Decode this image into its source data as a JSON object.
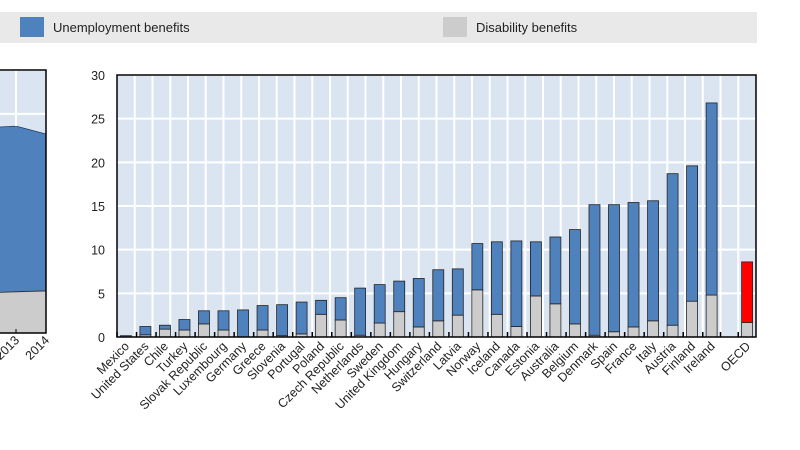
{
  "legend": {
    "items": [
      {
        "label": "Unemployment benefits",
        "color": "#4f81bd"
      },
      {
        "label": "Disability benefits",
        "color": "#cccccc"
      }
    ]
  },
  "chart_data": [
    {
      "type": "area",
      "stacked": true,
      "partial": "cropped at left edge",
      "x": [
        "2013",
        "2014"
      ],
      "series": [
        {
          "name": "Disability benefits",
          "color": "#cccccc",
          "values": [
            4.7,
            4.8
          ]
        },
        {
          "name": "Unemployment benefits",
          "color": "#4f81bd",
          "values": [
            18.9,
            17.9
          ]
        }
      ],
      "ylim": [
        0,
        30
      ],
      "grid": true
    },
    {
      "type": "bar",
      "stacked": true,
      "categories": [
        "Mexico",
        "United States",
        "Chile",
        "Turkey",
        "Slovak Republic",
        "Luxembourg",
        "Germany",
        "Greece",
        "Slovenia",
        "Portugal",
        "Poland",
        "Czech Republic",
        "Netherlands",
        "Sweden",
        "United Kingdom",
        "Hungary",
        "Switzerland",
        "Latvia",
        "Norway",
        "Iceland",
        "Canada",
        "Estonia",
        "Australia",
        "Belgium",
        "Denmark",
        "Spain",
        "France",
        "Italy",
        "Austria",
        "Finland",
        "Ireland",
        "",
        "OECD"
      ],
      "series": [
        {
          "name": "Disability benefits",
          "color": "#cccccc",
          "values": [
            0,
            0.25,
            0.9,
            0.8,
            1.5,
            0.8,
            0,
            0.8,
            0.15,
            0.35,
            2.6,
            1.95,
            0.2,
            1.6,
            2.9,
            1.15,
            1.85,
            2.5,
            5.4,
            2.6,
            1.2,
            4.7,
            3.8,
            1.5,
            0.2,
            0.6,
            1.15,
            1.85,
            1.35,
            4.1,
            4.8,
            null,
            1.65
          ]
        },
        {
          "name": "Unemployment benefits",
          "color": "#4f81bd",
          "values": [
            0.15,
            0.95,
            0.45,
            1.2,
            1.5,
            2.2,
            3.1,
            2.8,
            3.55,
            3.65,
            1.6,
            2.55,
            5.4,
            4.4,
            3.5,
            5.55,
            5.85,
            5.3,
            5.3,
            8.3,
            9.8,
            6.2,
            7.65,
            10.8,
            14.95,
            14.55,
            14.25,
            13.75,
            17.35,
            15.5,
            22.0,
            null,
            6.95
          ]
        }
      ],
      "highlight": {
        "category": "OECD",
        "color": "#ff0000"
      },
      "yticks": [
        "0",
        "5",
        "10",
        "15",
        "20",
        "25",
        "30"
      ],
      "ylim": [
        0,
        30
      ],
      "grid": true,
      "plot_background": "#dbe5f1"
    }
  ]
}
